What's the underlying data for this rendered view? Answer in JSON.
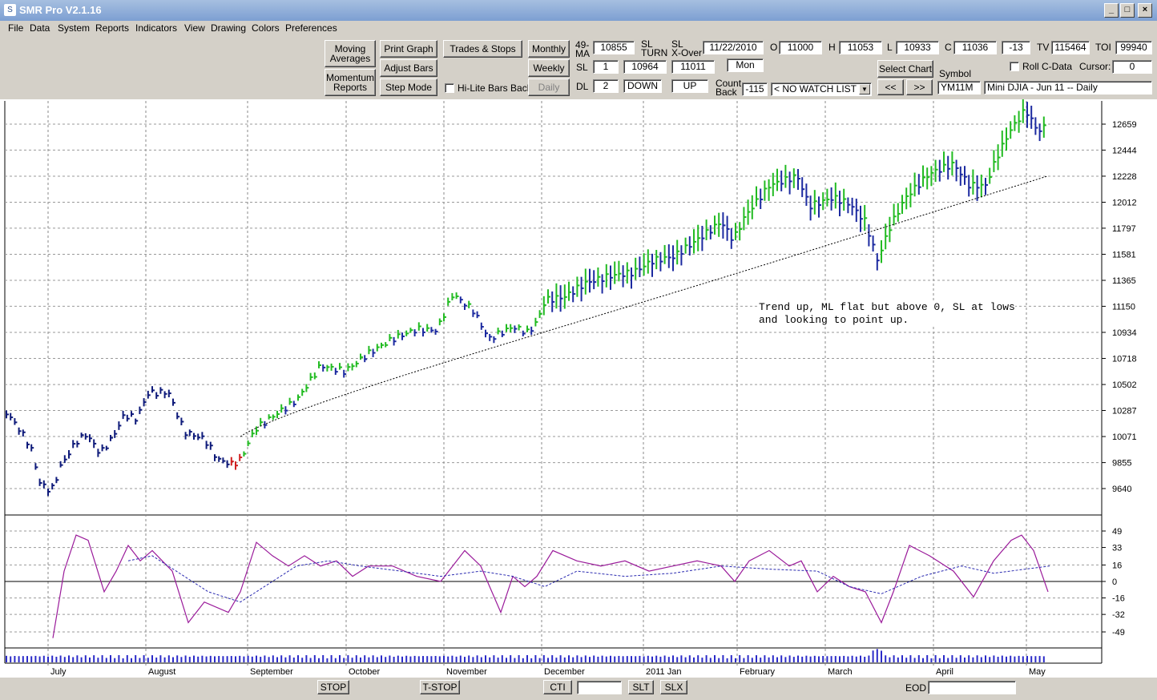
{
  "window": {
    "title": "SMR Pro V2.1.16",
    "min": "_",
    "max": "□",
    "close": "×"
  },
  "menu": [
    "File",
    "Data",
    "System",
    "Reports",
    "Indicators",
    "View",
    "Drawing",
    "Colors",
    "Preferences"
  ],
  "toolbar": {
    "moving_averages": "Moving\nAverages",
    "momentum_reports": "Momentum\nReports",
    "print_graph": "Print Graph",
    "adjust_bars": "Adjust Bars",
    "step_mode": "Step Mode",
    "trades_stops": "Trades & Stops",
    "hilite_bars_back": "Hi-Lite Bars Back",
    "monthly": "Monthly",
    "weekly": "Weekly",
    "daily": "Daily",
    "ma_label": "49-\nMA",
    "ma_value": "10855",
    "sl_turn_label": "SL\nTURN",
    "sl_xover_label": "SL\nX-Over",
    "date": "11/22/2010",
    "day": "Mon",
    "o_label": "O",
    "o_value": "11000",
    "h_label": "H",
    "h_value": "11053",
    "l_label": "L",
    "l_value": "10933",
    "c_label": "C",
    "c_value": "11036",
    "change": "-13",
    "tv_label": "TV",
    "tv_value": "115464",
    "toi_label": "TOI",
    "toi_value": "99940",
    "sl_label": "SL",
    "sl_value": "1",
    "sl_turn_value": "10964",
    "sl_xover_value": "11011",
    "dl_label": "DL",
    "dl_value": "2",
    "dl_dir1": "DOWN",
    "dl_dir2": "UP",
    "count_back_label": "Count\nBack",
    "count_back_value": "-115",
    "watchlist": "< NO WATCH LIST >",
    "select_chart": "Select Chart",
    "prev": "<<",
    "next": ">>",
    "symbol_label": "Symbol",
    "symbol_value": "YM11M",
    "symbol_desc": "Mini DJIA - Jun 11 -- Daily",
    "roll_cdata": "Roll C-Data",
    "cursor_label": "Cursor:",
    "cursor_value": "0"
  },
  "chart": {
    "annotation": "Trend up, ML flat but above 0, SL at lows\nand looking to point up.",
    "months": [
      "July",
      "August",
      "September",
      "October",
      "November",
      "December",
      "2011 Jan",
      "February",
      "March",
      "April",
      "May"
    ],
    "price_ticks": [
      "12659",
      "12444",
      "12228",
      "12012",
      "11797",
      "11581",
      "11365",
      "11150",
      "10934",
      "10718",
      "10502",
      "10287",
      "10071",
      "9855",
      "9640"
    ],
    "osc_ticks": [
      "49",
      "33",
      "16",
      "0",
      "-16",
      "-32",
      "-49"
    ],
    "colors": {
      "up": "#22bb22",
      "down": "#1c2aa0",
      "neutral": "#0e1a7a",
      "red": "#d02020",
      "osc": "#9a1a9a",
      "signal": "#2a2ab0",
      "volume": "#2a2ac8"
    }
  },
  "bottom": {
    "stop": "STOP",
    "tstop": "T-STOP",
    "cti": "CTI",
    "slt": "SLT",
    "slx": "SLX",
    "eod_label": "EOD"
  }
}
